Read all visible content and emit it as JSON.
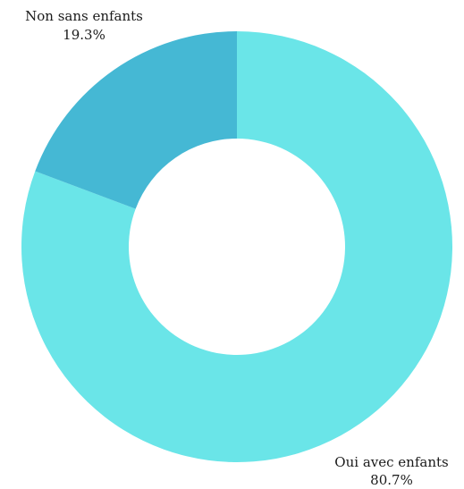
{
  "chart_data": {
    "type": "pie",
    "variant": "donut",
    "slices": [
      {
        "label": "Oui avec enfants",
        "value_label": "80.7%",
        "value": 80.7,
        "color": "#6ae5e8"
      },
      {
        "label": "Non sans enfants",
        "value_label": "19.3%",
        "value": 19.3,
        "color": "#45b8d4"
      }
    ]
  }
}
